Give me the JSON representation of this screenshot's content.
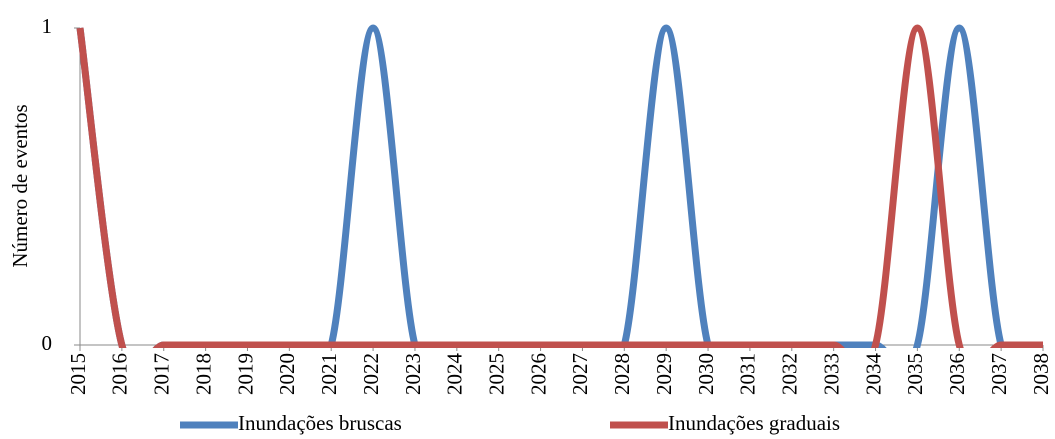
{
  "chart_data": {
    "type": "line",
    "y_label": "Número de eventos",
    "categories": [
      "2015",
      "2016",
      "2017",
      "2018",
      "2019",
      "2020",
      "2021",
      "2022",
      "2023",
      "2024",
      "2025",
      "2026",
      "2027",
      "2028",
      "2029",
      "2030",
      "2031",
      "2032",
      "2033",
      "2034",
      "2035",
      "2036",
      "2037",
      "2038"
    ],
    "series": [
      {
        "name": "Inundações bruscas",
        "color": "#4f81bd",
        "values": [
          1,
          0,
          0,
          0,
          0,
          0,
          0,
          1,
          0,
          0,
          0,
          0,
          0,
          0,
          1,
          0,
          0,
          0,
          0,
          0,
          0,
          1,
          0,
          0
        ]
      },
      {
        "name": "Inundações graduais",
        "color": "#c0504d",
        "values": [
          1,
          0,
          0,
          0,
          0,
          0,
          0,
          0,
          0,
          0,
          0,
          0,
          0,
          0,
          0,
          0,
          0,
          0,
          0,
          0,
          1,
          0,
          0,
          0
        ]
      }
    ],
    "ylim": [
      0,
      1
    ],
    "yticks": [
      0,
      1
    ],
    "smooth": true
  }
}
